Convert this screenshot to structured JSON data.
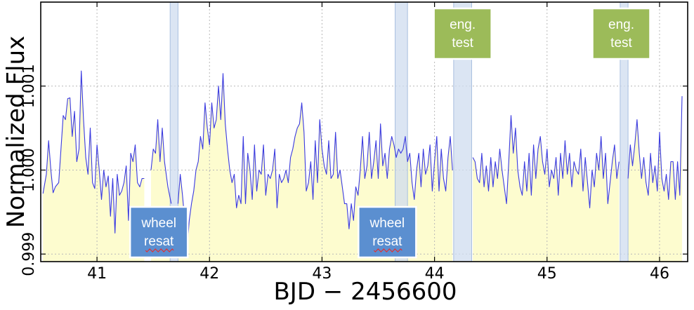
{
  "chart_data": {
    "type": "line",
    "xlabel": "BJD − 2456600",
    "ylabel": "Normalized Flux",
    "xlim": [
      40.5,
      46.25
    ],
    "ylim": [
      0.99891,
      1.002
    ],
    "grid": true,
    "xticks": [
      41,
      42,
      43,
      44,
      45,
      46
    ],
    "xtick_labels": [
      "41",
      "42",
      "43",
      "44",
      "45",
      "46"
    ],
    "yticks": [
      0.999,
      1.0,
      1.001
    ],
    "ytick_labels": [
      "0.999",
      "1.000",
      "1.001"
    ],
    "colors": {
      "line": "#3a3ae0",
      "fill": "#fdfccf",
      "band_fill": "#cfdcef",
      "band_edge": "#a9bfe0",
      "wheel_box": "#5b8fd0",
      "eng_box": "#9cbb59"
    },
    "bands": [
      {
        "x0": 41.65,
        "x1": 41.72
      },
      {
        "x0": 43.65,
        "x1": 43.76
      },
      {
        "x0": 44.17,
        "x1": 44.33
      },
      {
        "x0": 45.65,
        "x1": 45.72
      }
    ],
    "annotations": [
      {
        "text": [
          "wheel",
          "resat"
        ],
        "x": 41.55,
        "pos": "bottom",
        "kind": "wheel"
      },
      {
        "text": [
          "wheel",
          "resat"
        ],
        "x": 43.58,
        "pos": "bottom",
        "kind": "wheel"
      },
      {
        "text": [
          "eng.",
          "test"
        ],
        "x": 44.25,
        "pos": "top",
        "kind": "eng"
      },
      {
        "text": [
          "eng.",
          "test"
        ],
        "x": 45.66,
        "pos": "top",
        "kind": "eng"
      }
    ],
    "segments": [
      [
        [
          40.52,
          0.99972
        ],
        [
          40.55,
          0.99995
        ],
        [
          40.57,
          1.00035
        ],
        [
          40.59,
          1.0
        ],
        [
          40.61,
          0.99973
        ],
        [
          40.63,
          0.9998
        ],
        [
          40.66,
          0.99985
        ],
        [
          40.68,
          1.00025
        ],
        [
          40.7,
          1.00065
        ],
        [
          40.72,
          1.0006
        ],
        [
          40.74,
          1.00085
        ],
        [
          40.76,
          1.00086
        ],
        [
          40.78,
          1.0004
        ],
        [
          40.8,
          1.0007
        ],
        [
          40.82,
          1.0001
        ],
        [
          40.84,
          1.00025
        ],
        [
          40.86,
          1.00118
        ],
        [
          40.88,
          1.0006
        ],
        [
          40.9,
          1.00015
        ],
        [
          40.92,
          0.99995
        ],
        [
          40.94,
          1.0005
        ],
        [
          40.96,
          0.99985
        ],
        [
          40.98,
          0.99978
        ],
        [
          41.0,
          1.0003
        ],
        [
          41.02,
          1.0
        ],
        [
          41.04,
          0.99965
        ],
        [
          41.06,
          1.0
        ],
        [
          41.08,
          0.9998
        ],
        [
          41.1,
          0.99993
        ],
        [
          41.12,
          0.99945
        ],
        [
          41.14,
          0.9999
        ],
        [
          41.16,
          0.99925
        ],
        [
          41.18,
          0.99995
        ],
        [
          41.2,
          0.9997
        ],
        [
          41.22,
          0.99975
        ],
        [
          41.24,
          0.99985
        ],
        [
          41.26,
          1.00005
        ],
        [
          41.28,
          0.9994
        ],
        [
          41.3,
          1.0002
        ],
        [
          41.32,
          1.0001
        ],
        [
          41.34,
          1.0003
        ],
        [
          41.36,
          0.99985
        ],
        [
          41.38,
          0.9998
        ],
        [
          41.4,
          0.9999
        ],
        [
          41.42,
          0.9999
        ]
      ],
      [
        [
          41.48,
          1.0
        ],
        [
          41.5,
          1.00025
        ],
        [
          41.52,
          1.0002
        ],
        [
          41.54,
          1.0006
        ],
        [
          41.56,
          1.0001
        ],
        [
          41.58,
          1.0005
        ],
        [
          41.6,
          1.0001
        ],
        [
          41.63,
          0.9998
        ],
        [
          41.66,
          0.9996
        ]
      ],
      [
        [
          41.72,
          0.9996
        ],
        [
          41.74,
          0.99995
        ],
        [
          41.76,
          0.9997
        ],
        [
          41.78,
          0.9994
        ],
        [
          41.8,
          0.99905
        ],
        [
          41.82,
          0.9994
        ],
        [
          41.84,
          0.9996
        ],
        [
          41.86,
          0.99975
        ],
        [
          41.88,
          1.0
        ],
        [
          41.9,
          1.0001
        ],
        [
          41.92,
          1.0004
        ],
        [
          41.94,
          1.00025
        ],
        [
          41.96,
          1.0008
        ],
        [
          41.98,
          1.0005
        ],
        [
          42.0,
          1.0003
        ],
        [
          42.02,
          1.0008
        ],
        [
          42.04,
          1.0005
        ],
        [
          42.06,
          1.0006
        ],
        [
          42.08,
          1.001
        ],
        [
          42.1,
          1.0006
        ],
        [
          42.12,
          1.00115
        ],
        [
          42.14,
          1.00055
        ],
        [
          42.16,
          1.00025
        ],
        [
          42.18,
          1.0
        ],
        [
          42.2,
          0.99985
        ],
        [
          42.22,
          0.99995
        ],
        [
          42.24,
          0.99955
        ],
        [
          42.26,
          0.9997
        ],
        [
          42.28,
          0.9996
        ],
        [
          42.3,
          1.0004
        ],
        [
          42.32,
          0.9996
        ],
        [
          42.34,
          1.0002
        ],
        [
          42.36,
          1.0
        ],
        [
          42.38,
          0.99965
        ],
        [
          42.4,
          1.0003
        ],
        [
          42.42,
          0.99975
        ],
        [
          42.44,
          1.0
        ],
        [
          42.46,
          0.99995
        ],
        [
          42.48,
          1.0003
        ],
        [
          42.5,
          0.9997
        ],
        [
          42.52,
          0.99995
        ],
        [
          42.54,
          0.9999
        ],
        [
          42.56,
          1.0
        ],
        [
          42.58,
          1.00025
        ],
        [
          42.6,
          0.99955
        ],
        [
          42.62,
          0.99995
        ],
        [
          42.64,
          0.99985
        ],
        [
          42.66,
          0.9999
        ],
        [
          42.68,
          1.0
        ],
        [
          42.7,
          0.99985
        ],
        [
          42.72,
          1.00015
        ],
        [
          42.74,
          1.00025
        ],
        [
          42.76,
          1.0004
        ],
        [
          42.78,
          1.0005
        ],
        [
          42.8,
          1.00055
        ],
        [
          42.82,
          1.0008
        ],
        [
          42.84,
          1.00045
        ],
        [
          42.86,
          0.99975
        ],
        [
          42.88,
          0.99985
        ],
        [
          42.9,
          1.0001
        ],
        [
          42.92,
          0.99965
        ],
        [
          42.94,
          1.00035
        ],
        [
          42.96,
          0.99985
        ],
        [
          42.98,
          1.0006
        ],
        [
          43.0,
          1.00025
        ],
        [
          43.02,
          1.00005
        ],
        [
          43.04,
          0.99995
        ],
        [
          43.06,
          1.00035
        ],
        [
          43.08,
          0.9999
        ],
        [
          43.1,
          0.99995
        ],
        [
          43.12,
          1.00045
        ],
        [
          43.14,
          0.9999
        ],
        [
          43.16,
          1.0
        ],
        [
          43.18,
          0.9998
        ],
        [
          43.2,
          0.9996
        ],
        [
          43.22,
          0.9996
        ],
        [
          43.24,
          0.9993
        ],
        [
          43.26,
          0.9996
        ],
        [
          43.28,
          0.9994
        ],
        [
          43.3,
          0.9998
        ],
        [
          43.32,
          0.9997
        ],
        [
          43.34,
          1.0
        ],
        [
          43.36,
          1.0004
        ],
        [
          43.38,
          0.9999
        ],
        [
          43.4,
          1.00005
        ],
        [
          43.42,
          1.00045
        ],
        [
          43.44,
          0.9999
        ],
        [
          43.46,
          1.0001
        ],
        [
          43.48,
          1.00035
        ],
        [
          43.5,
          0.9999
        ],
        [
          43.52,
          1.00055
        ],
        [
          43.54,
          1.00005
        ],
        [
          43.56,
          1.0002
        ],
        [
          43.58,
          0.9999
        ],
        [
          43.6,
          1.00025
        ],
        [
          43.62,
          1.0004
        ],
        [
          43.64,
          1.0003
        ],
        [
          43.66,
          1.00015
        ],
        [
          43.68,
          1.00025
        ],
        [
          43.7,
          1.0002
        ],
        [
          43.72,
          1.00025
        ],
        [
          43.74,
          1.0004
        ],
        [
          43.76,
          1.0001
        ],
        [
          43.78,
          1.0002
        ],
        [
          43.8,
          0.99985
        ],
        [
          43.82,
          0.99965
        ],
        [
          43.84,
          1.0
        ],
        [
          43.86,
          1.0002
        ],
        [
          43.88,
          0.9998
        ],
        [
          43.9,
          1.00025
        ],
        [
          43.92,
          0.99995
        ],
        [
          43.94,
          1.00005
        ],
        [
          43.96,
          1.0003
        ],
        [
          43.98,
          0.99975
        ],
        [
          44.0,
          1.0001
        ],
        [
          44.02,
          1.0004
        ],
        [
          44.04,
          0.99975
        ],
        [
          44.06,
          1.00025
        ],
        [
          44.08,
          0.9999
        ],
        [
          44.1,
          0.99975
        ],
        [
          44.12,
          1.00015
        ],
        [
          44.14,
          1.0004
        ],
        [
          44.16,
          1.0
        ]
      ],
      [
        [
          44.34,
          1.00015
        ],
        [
          44.36,
          1.0001
        ],
        [
          44.38,
          0.9999
        ],
        [
          44.4,
          0.99985
        ],
        [
          44.42,
          1.0002
        ],
        [
          44.44,
          0.9998
        ],
        [
          44.46,
          1.00005
        ],
        [
          44.48,
          0.99975
        ],
        [
          44.5,
          1.00015
        ],
        [
          44.52,
          0.9998
        ],
        [
          44.54,
          1.0001
        ],
        [
          44.56,
          0.9999
        ],
        [
          44.58,
          1.00025
        ],
        [
          44.6,
          1.0
        ],
        [
          44.62,
          0.9998
        ],
        [
          44.64,
          0.9996
        ],
        [
          44.66,
          1.0001
        ],
        [
          44.68,
          1.00065
        ],
        [
          44.7,
          1.0002
        ],
        [
          44.72,
          1.0005
        ],
        [
          44.74,
          1.0
        ],
        [
          44.76,
          0.9998
        ],
        [
          44.78,
          0.9997
        ],
        [
          44.8,
          1.0001
        ],
        [
          44.82,
          0.99975
        ],
        [
          44.84,
          1.0002
        ],
        [
          44.86,
          0.9997
        ],
        [
          44.88,
          1.0003
        ],
        [
          44.9,
          0.9999
        ],
        [
          44.92,
          1.00025
        ],
        [
          44.94,
          1.0004
        ],
        [
          44.96,
          1.0001
        ],
        [
          44.98,
          0.99995
        ],
        [
          45.0,
          1.00025
        ],
        [
          45.02,
          0.9998
        ],
        [
          45.04,
          1.0
        ],
        [
          45.06,
          0.9999
        ],
        [
          45.08,
          1.00015
        ],
        [
          45.1,
          0.9997
        ],
        [
          45.12,
          1.0002
        ],
        [
          45.14,
          0.9999
        ],
        [
          45.16,
          1.00035
        ],
        [
          45.18,
          0.99995
        ],
        [
          45.2,
          1.0002
        ],
        [
          45.22,
          0.9998
        ],
        [
          45.24,
          1.0001
        ],
        [
          45.26,
          1.0
        ],
        [
          45.28,
          0.99995
        ],
        [
          45.3,
          1.00025
        ],
        [
          45.32,
          0.99975
        ],
        [
          45.34,
          1.00015
        ],
        [
          45.36,
          0.99985
        ],
        [
          45.38,
          0.99955
        ],
        [
          45.4,
          1.0
        ],
        [
          45.42,
          0.9998
        ],
        [
          45.44,
          1.0002
        ],
        [
          45.46,
          1.0
        ],
        [
          45.48,
          1.0004
        ],
        [
          45.5,
          0.9999
        ],
        [
          45.52,
          1.0002
        ],
        [
          45.54,
          0.9996
        ],
        [
          45.56,
          0.99985
        ],
        [
          45.58,
          1.0001
        ],
        [
          45.6,
          1.0003
        ],
        [
          45.62,
          0.9999
        ],
        [
          45.64,
          1.0001
        ]
      ],
      [
        [
          45.72,
          0.9999
        ],
        [
          45.74,
          1.0003
        ],
        [
          45.76,
          1.00005
        ],
        [
          45.78,
          1.0003
        ],
        [
          45.8,
          1.0006
        ],
        [
          45.82,
          1.0002
        ],
        [
          45.84,
          0.9999
        ],
        [
          45.86,
          1.00015
        ],
        [
          45.88,
          0.99985
        ],
        [
          45.9,
          0.9997
        ],
        [
          45.92,
          1.0002
        ],
        [
          45.94,
          0.99985
        ],
        [
          45.96,
          1.00005
        ],
        [
          45.98,
          0.99975
        ],
        [
          46.0,
          1.00045
        ],
        [
          46.02,
          0.9999
        ],
        [
          46.04,
          0.99975
        ],
        [
          46.06,
          0.99995
        ],
        [
          46.08,
          0.99965
        ],
        [
          46.1,
          1.0001
        ],
        [
          46.12,
          1.0001
        ],
        [
          46.14,
          0.99965
        ],
        [
          46.16,
          1.0001
        ],
        [
          46.18,
          0.9997
        ],
        [
          46.2,
          1.00088
        ]
      ]
    ]
  }
}
